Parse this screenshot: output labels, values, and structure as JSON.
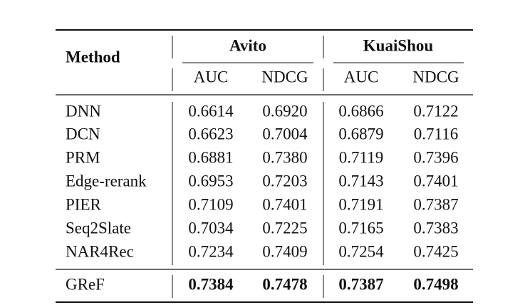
{
  "table": {
    "header": {
      "method": "Method",
      "groups": [
        "Avito",
        "KuaiShou"
      ],
      "columns": [
        "AUC",
        "NDCG",
        "AUC",
        "NDCG"
      ]
    },
    "rows": [
      [
        "DNN",
        "0.6614",
        "0.6920",
        "0.6866",
        "0.7122"
      ],
      [
        "DCN",
        "0.6623",
        "0.7004",
        "0.6879",
        "0.7116"
      ],
      [
        "PRM",
        "0.6881",
        "0.7380",
        "0.7119",
        "0.7396"
      ],
      [
        "Edge-rerank",
        "0.6953",
        "0.7203",
        "0.7143",
        "0.7401"
      ],
      [
        "PIER",
        "0.7109",
        "0.7401",
        "0.7191",
        "0.7387"
      ],
      [
        "Seq2Slate",
        "0.7034",
        "0.7225",
        "0.7165",
        "0.7383"
      ],
      [
        "NAR4Rec",
        "0.7234",
        "0.7409",
        "0.7254",
        "0.7425"
      ]
    ],
    "final_row": [
      "GReF",
      "0.7384",
      "0.7478",
      "0.7387",
      "0.7498"
    ]
  }
}
